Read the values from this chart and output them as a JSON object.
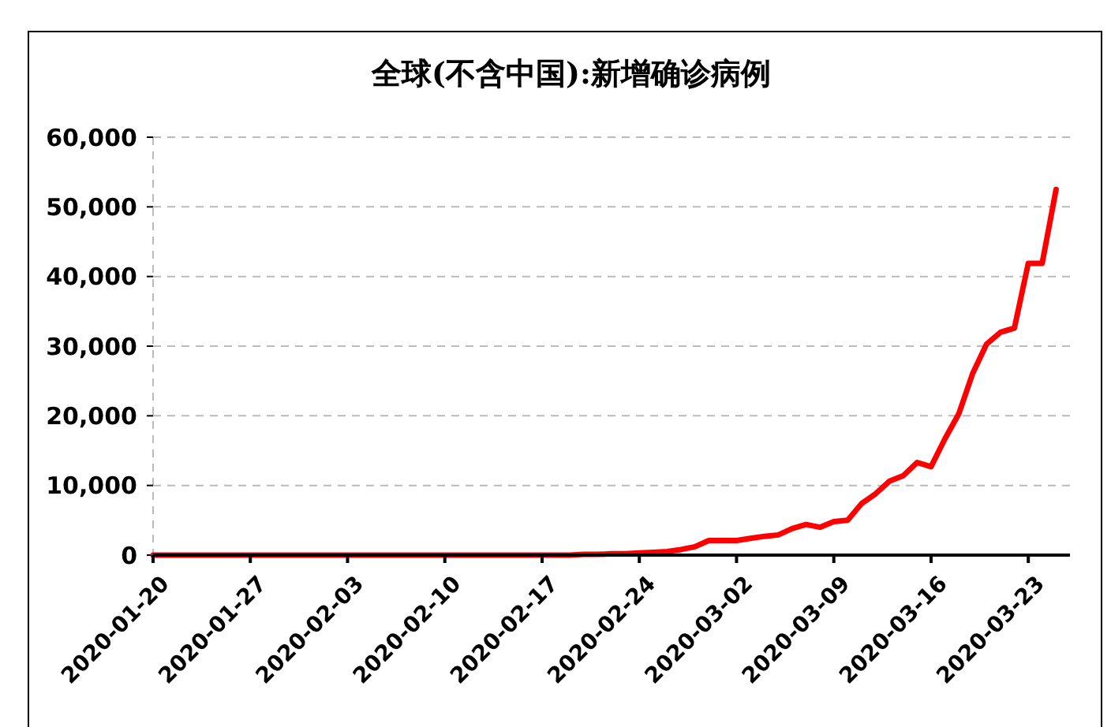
{
  "chart_data": {
    "type": "line",
    "title": "全球(不含中国):新增确诊病例",
    "x": [
      "2020-01-20",
      "2020-01-21",
      "2020-01-22",
      "2020-01-23",
      "2020-01-24",
      "2020-01-25",
      "2020-01-26",
      "2020-01-27",
      "2020-01-28",
      "2020-01-29",
      "2020-01-30",
      "2020-01-31",
      "2020-02-01",
      "2020-02-02",
      "2020-02-03",
      "2020-02-04",
      "2020-02-05",
      "2020-02-06",
      "2020-02-07",
      "2020-02-08",
      "2020-02-09",
      "2020-02-10",
      "2020-02-11",
      "2020-02-12",
      "2020-02-13",
      "2020-02-14",
      "2020-02-15",
      "2020-02-16",
      "2020-02-17",
      "2020-02-18",
      "2020-02-19",
      "2020-02-20",
      "2020-02-21",
      "2020-02-22",
      "2020-02-23",
      "2020-02-24",
      "2020-02-25",
      "2020-02-26",
      "2020-02-27",
      "2020-02-28",
      "2020-02-29",
      "2020-03-01",
      "2020-03-02",
      "2020-03-03",
      "2020-03-04",
      "2020-03-05",
      "2020-03-06",
      "2020-03-07",
      "2020-03-08",
      "2020-03-09",
      "2020-03-10",
      "2020-03-11",
      "2020-03-12",
      "2020-03-13",
      "2020-03-14",
      "2020-03-15",
      "2020-03-16",
      "2020-03-17",
      "2020-03-18",
      "2020-03-19",
      "2020-03-20",
      "2020-03-21",
      "2020-03-22",
      "2020-03-23",
      "2020-03-24",
      "2020-03-25"
    ],
    "series": [
      {
        "color": "#ff0000",
        "values": [
          0,
          0,
          0,
          0,
          0,
          0,
          0,
          0,
          0,
          0,
          0,
          0,
          0,
          0,
          0,
          0,
          0,
          0,
          0,
          0,
          0,
          0,
          0,
          0,
          0,
          0,
          0,
          0,
          0,
          0,
          0,
          100,
          100,
          200,
          200,
          300,
          400,
          500,
          800,
          1200,
          2100,
          2100,
          2100,
          2400,
          2700,
          2900,
          3800,
          4400,
          4000,
          4800,
          5000,
          7400,
          8800,
          10600,
          11400,
          13300,
          12700,
          16700,
          20300,
          26100,
          30300,
          32000,
          32600,
          41900,
          41900,
          52500
        ]
      }
    ],
    "xlim": [
      "2020-01-20",
      "2020-03-26"
    ],
    "xticks": [
      {
        "value": "2020-01-20",
        "label": "2020-01-20"
      },
      {
        "value": "2020-01-27",
        "label": "2020-01-27"
      },
      {
        "value": "2020-02-03",
        "label": "2020-02-03"
      },
      {
        "value": "2020-02-10",
        "label": "2020-02-10"
      },
      {
        "value": "2020-02-17",
        "label": "2020-02-17"
      },
      {
        "value": "2020-02-24",
        "label": "2020-02-24"
      },
      {
        "value": "2020-03-02",
        "label": "2020-03-02"
      },
      {
        "value": "2020-03-09",
        "label": "2020-03-09"
      },
      {
        "value": "2020-03-16",
        "label": "2020-03-16"
      },
      {
        "value": "2020-03-23",
        "label": "2020-03-23"
      }
    ],
    "ylim": [
      0,
      60000
    ],
    "yticks": [
      0,
      {
        "value": 10000,
        "label": "10,000"
      },
      {
        "value": 20000,
        "label": "20,000"
      },
      {
        "value": 30000,
        "label": "30,000"
      },
      {
        "value": 40000,
        "label": "40,000"
      },
      {
        "value": 50000,
        "label": "50,000"
      },
      {
        "value": 60000,
        "label": "60,000"
      }
    ],
    "grid": "y",
    "marker": "none",
    "line_style": "solid"
  }
}
